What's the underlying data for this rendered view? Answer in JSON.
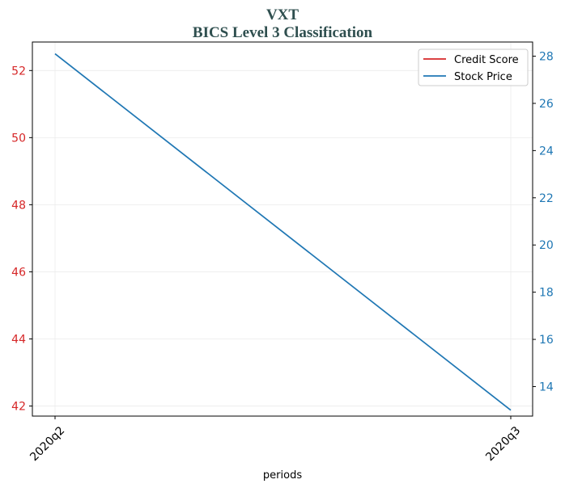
{
  "chart_data": {
    "type": "line",
    "title": "VXT",
    "subtitle": "BICS Level 3 Classification",
    "xlabel": "periods",
    "categories": [
      "2020q2",
      "2020q3"
    ],
    "left_axis": {
      "ylim": [
        41.7,
        52.85
      ],
      "ticks": [
        42,
        44,
        46,
        48,
        50,
        52
      ],
      "tick_color": "#d62728"
    },
    "right_axis": {
      "ylim": [
        12.75,
        28.6
      ],
      "ticks": [
        14,
        16,
        18,
        20,
        22,
        24,
        26,
        28
      ],
      "tick_color": "#1f77b4"
    },
    "series": [
      {
        "name": "Credit Score",
        "color": "#d62728",
        "axis": "left",
        "values": [
          null,
          null
        ]
      },
      {
        "name": "Stock Price",
        "color": "#1f77b4",
        "axis": "right",
        "values": [
          28.1,
          13.0
        ]
      }
    ],
    "legend": "top-right",
    "grid": true
  }
}
